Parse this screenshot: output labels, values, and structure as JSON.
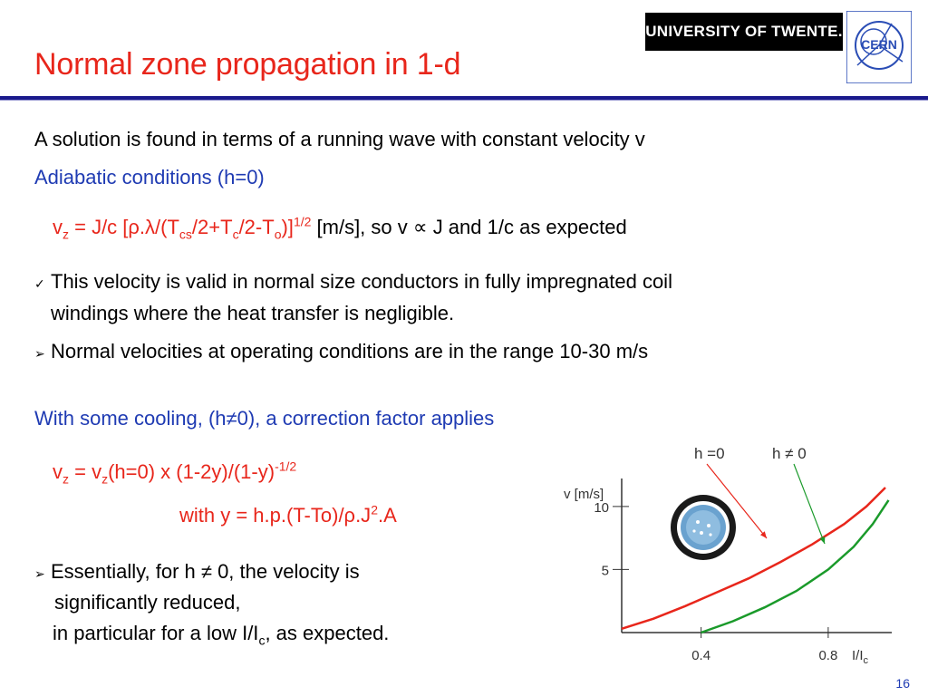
{
  "header": {
    "title": "Normal zone propagation in 1-d",
    "university_logo": "UNIVERSITY OF TWENTE.",
    "cern_logo": "CERN"
  },
  "intro": "A solution is found in terms of a running wave with constant velocity v",
  "adiabatic": {
    "heading": "Adiabatic conditions (h=0)",
    "formula": {
      "v": "v",
      "z": "z",
      "eq": " = J/c [ρ.λ/(T",
      "cs": "cs",
      "mid1": "/2+T",
      "c": "c",
      "mid2": "/2-T",
      "o": "o",
      "end": ")]",
      "exp": "1/2",
      "tail": " [m/s], so v ∝ J and 1/c as expected"
    },
    "bullet1_mark": "✓",
    "bullet1_line1": "This velocity is valid in normal size conductors in fully impregnated coil",
    "bullet1_line2": "windings where the heat transfer is negligible.",
    "bullet2_mark": "➢",
    "bullet2": "Normal velocities at operating conditions are in the range 10-30 m/s"
  },
  "cooling": {
    "heading": "With some cooling, (h≠0), a correction factor applies",
    "formula1": {
      "v": "v",
      "z": "z",
      "mid": " = v",
      "z2": "z",
      "rest": "(h=0) x (1-2y)/(1-y)",
      "exp": "-1/2"
    },
    "formula2": {
      "pre": "with y = h.p.(T-To)/ρ.J",
      "exp": "2",
      "post": ".A"
    },
    "bullet_mark": "➢",
    "bullet_line1": "Essentially, for h ≠ 0, the velocity is",
    "bullet_line2": "significantly reduced,",
    "bullet_line3_pre": "in particular for a low I/I",
    "bullet_line3_sub": "c",
    "bullet_line3_post": ", as expected."
  },
  "chart_data": {
    "type": "line",
    "title": "",
    "ylabel": "v [m/s]",
    "xlabel": "I/I",
    "xlabel_sub": "c",
    "x_ticks": [
      "0.4",
      "0.8"
    ],
    "y_ticks": [
      "5",
      "10"
    ],
    "xlim": [
      0.15,
      1.0
    ],
    "ylim": [
      0,
      11.5
    ],
    "series": [
      {
        "name": "h =0",
        "color": "#e8261b",
        "x": [
          0.15,
          0.25,
          0.35,
          0.45,
          0.55,
          0.65,
          0.75,
          0.85,
          0.92,
          0.98
        ],
        "y": [
          0.3,
          1.1,
          2.1,
          3.2,
          4.3,
          5.6,
          7.0,
          8.6,
          10.0,
          11.5
        ]
      },
      {
        "name": "h ≠ 0",
        "color": "#1a9a2a",
        "x": [
          0.4,
          0.5,
          0.6,
          0.7,
          0.8,
          0.88,
          0.94,
          0.99
        ],
        "y": [
          0.0,
          0.9,
          2.0,
          3.3,
          5.0,
          6.8,
          8.6,
          10.5
        ]
      }
    ],
    "annotations": [
      "h =0",
      "h ≠ 0"
    ]
  },
  "page_number": "16",
  "colors": {
    "title": "#e8261b",
    "accent_blue": "#1f3bb3",
    "formula_red": "#e8261b",
    "rule": "#1a1a8c"
  }
}
